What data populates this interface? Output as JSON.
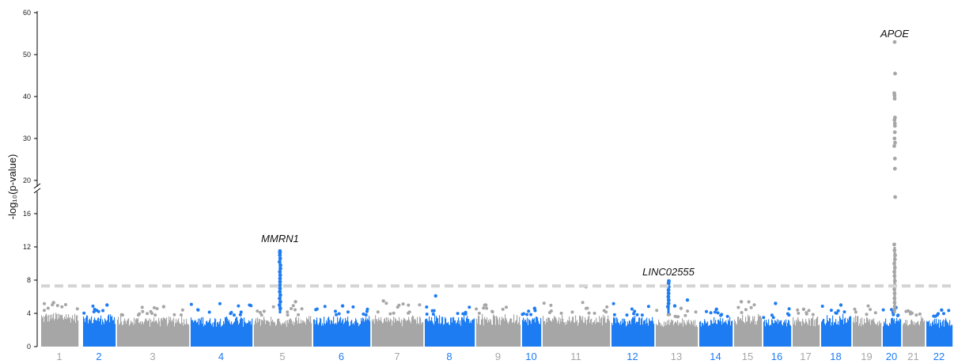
{
  "chart_data": {
    "type": "scatter",
    "subtype": "manhattan",
    "title": "",
    "xlabel": "",
    "ylabel": "-log₁₀(p-value)",
    "y_axis": {
      "lower_segment": {
        "range": [
          0,
          20
        ],
        "ticks": [
          0,
          4,
          8,
          12,
          16,
          20
        ]
      },
      "upper_segment": {
        "range": [
          20,
          60
        ],
        "ticks": [
          30,
          40,
          50,
          60
        ]
      },
      "axis_break": 20
    },
    "significance_threshold": 7.3,
    "threshold_style": "dashed light gray",
    "colors": {
      "gray": "#a6a6a6",
      "blue": "#1e7cf2",
      "threshold": "#d4d4d4"
    },
    "chromosomes": [
      {
        "label": "1",
        "color": "gray",
        "baseline_max": 4.3,
        "peak": 5.3
      },
      {
        "label": "2",
        "color": "blue",
        "baseline_max": 4.0,
        "peak": 5.0
      },
      {
        "label": "3",
        "color": "gray",
        "baseline_max": 3.8,
        "peak": 4.8
      },
      {
        "label": "4",
        "color": "blue",
        "baseline_max": 3.8,
        "peak": 11.5,
        "gene": "MMRN1"
      },
      {
        "label": "5",
        "color": "gray",
        "baseline_max": 3.8,
        "peak": 5.4
      },
      {
        "label": "6",
        "color": "blue",
        "baseline_max": 3.8,
        "peak": 4.9
      },
      {
        "label": "7",
        "color": "gray",
        "baseline_max": 3.9,
        "peak": 5.5
      },
      {
        "label": "8",
        "color": "blue",
        "baseline_max": 3.9,
        "peak": 6.1
      },
      {
        "label": "9",
        "color": "gray",
        "baseline_max": 4.0,
        "peak": 5.0
      },
      {
        "label": "10",
        "color": "blue",
        "baseline_max": 3.8,
        "peak": 4.6
      },
      {
        "label": "11",
        "color": "gray",
        "baseline_max": 4.0,
        "peak": 7.2
      },
      {
        "label": "12",
        "color": "blue",
        "baseline_max": 3.8,
        "peak": 7.9,
        "gene": "LINC02555"
      },
      {
        "label": "13",
        "color": "gray",
        "baseline_max": 3.6,
        "peak": 4.6
      },
      {
        "label": "14",
        "color": "blue",
        "baseline_max": 3.6,
        "peak": 4.5
      },
      {
        "label": "15",
        "color": "gray",
        "baseline_max": 4.0,
        "peak": 5.4
      },
      {
        "label": "16",
        "color": "blue",
        "baseline_max": 3.5,
        "peak": 5.2
      },
      {
        "label": "17",
        "color": "gray",
        "baseline_max": 3.8,
        "peak": 4.5
      },
      {
        "label": "18",
        "color": "blue",
        "baseline_max": 4.0,
        "peak": 5.0
      },
      {
        "label": "19",
        "color": "gray",
        "baseline_max": 3.8,
        "peak": 53.0,
        "gene": "APOE"
      },
      {
        "label": "20",
        "color": "blue",
        "baseline_max": 3.6,
        "peak": 4.7
      },
      {
        "label": "21",
        "color": "gray",
        "baseline_max": 3.8,
        "peak": 4.3
      },
      {
        "label": "22",
        "color": "blue",
        "baseline_max": 3.6,
        "peak": 4.4
      }
    ],
    "hit_points": {
      "4": [
        11.5,
        11.3,
        11.0,
        10.6,
        10.2,
        9.8,
        9.4,
        9.0,
        8.6,
        8.2,
        7.8,
        7.4,
        7.0,
        6.6,
        6.2,
        5.8,
        5.4,
        5.0,
        4.6
      ],
      "12": [
        7.9,
        7.6,
        7.2,
        6.8,
        6.4,
        6.0,
        5.6,
        5.2,
        4.8
      ],
      "19": [
        53.0,
        45.5,
        40.8,
        40.2,
        39.5,
        35.0,
        34.4,
        33.6,
        33.0,
        31.5,
        30.0,
        29.0,
        28.2,
        25.2,
        22.8,
        18.0,
        12.3,
        11.6,
        11.0,
        10.5,
        10.0,
        9.5,
        9.0,
        8.5,
        7.9,
        7.4,
        6.9,
        6.4,
        5.8,
        5.3,
        4.8,
        4.4
      ]
    },
    "annotations": [
      {
        "gene": "MMRN1",
        "chromosome": "4",
        "y": 11.5
      },
      {
        "gene": "LINC02555",
        "chromosome": "12",
        "y": 7.9
      },
      {
        "gene": "APOE",
        "chromosome": "19",
        "y": 53.0
      }
    ],
    "grid": false,
    "legend": "none"
  }
}
